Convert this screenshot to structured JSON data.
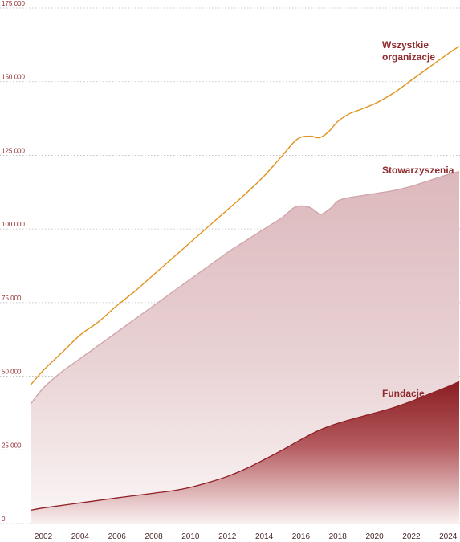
{
  "chart_data": {
    "type": "area",
    "title": "",
    "xlabel": "",
    "ylabel": "",
    "xlim": [
      2001.3,
      2024.6
    ],
    "ylim": [
      0,
      175000
    ],
    "x_ticks": [
      "2002",
      "2004",
      "2006",
      "2008",
      "2010",
      "2012",
      "2014",
      "2016",
      "2018",
      "2020",
      "2022",
      "2024"
    ],
    "y_ticks": [
      "0",
      "25 000",
      "50 000",
      "75 000",
      "100 000",
      "125 000",
      "150 000",
      "175 000"
    ],
    "y_tick_values": [
      0,
      25000,
      50000,
      75000,
      100000,
      125000,
      150000,
      175000
    ],
    "grid": true,
    "series": [
      {
        "name": "Wszystkie organizacje",
        "label_lines": [
          "Wszystkie",
          "organizacje"
        ],
        "style": "line",
        "color": "#e0931f",
        "x": [
          2001.3,
          2002,
          2003,
          2004,
          2005,
          2006,
          2007,
          2008,
          2009,
          2010,
          2011,
          2012,
          2013,
          2014,
          2015,
          2015.8,
          2016.5,
          2017,
          2017.5,
          2018,
          2018.6,
          2019,
          2020,
          2021,
          2022,
          2023,
          2024,
          2024.6
        ],
        "values": [
          47000,
          52000,
          58000,
          64000,
          68500,
          74000,
          79000,
          84500,
          90000,
          95500,
          101000,
          106500,
          112000,
          118000,
          125000,
          130500,
          131500,
          131000,
          133000,
          136500,
          139000,
          140000,
          142500,
          146000,
          150500,
          155000,
          159500,
          162000
        ]
      },
      {
        "name": "Stowarzyszenia",
        "label_lines": [
          "Stowarzyszenia"
        ],
        "style": "area",
        "color": "#cfa3a8",
        "x": [
          2001.3,
          2002,
          2003,
          2004,
          2005,
          2006,
          2007,
          2008,
          2009,
          2010,
          2011,
          2012,
          2013,
          2014,
          2015,
          2015.7,
          2016.4,
          2016.8,
          2017.1,
          2017.6,
          2018,
          2018.5,
          2019,
          2020,
          2021,
          2022,
          2023,
          2024,
          2024.6
        ],
        "values": [
          40500,
          46000,
          51500,
          56000,
          60500,
          65000,
          69500,
          74000,
          78500,
          83000,
          87500,
          92000,
          96000,
          100000,
          104000,
          107500,
          107500,
          106000,
          105000,
          107000,
          109500,
          110500,
          111000,
          112000,
          113000,
          114500,
          116500,
          118500,
          119500
        ]
      },
      {
        "name": "Fundacje",
        "label_lines": [
          "Fundacje"
        ],
        "style": "area",
        "color": "#8f2025",
        "x": [
          2001.3,
          2002,
          2004,
          2006,
          2008,
          2009,
          2010,
          2011,
          2012,
          2013,
          2014,
          2015,
          2016,
          2017,
          2018,
          2019,
          2020,
          2021,
          2022,
          2023,
          2024,
          2024.6
        ],
        "values": [
          4500,
          5300,
          7000,
          8700,
          10300,
          11100,
          12300,
          14000,
          16000,
          18600,
          21700,
          25000,
          28500,
          31700,
          34000,
          35800,
          37500,
          39300,
          41500,
          44000,
          46500,
          48200
        ]
      }
    ]
  }
}
